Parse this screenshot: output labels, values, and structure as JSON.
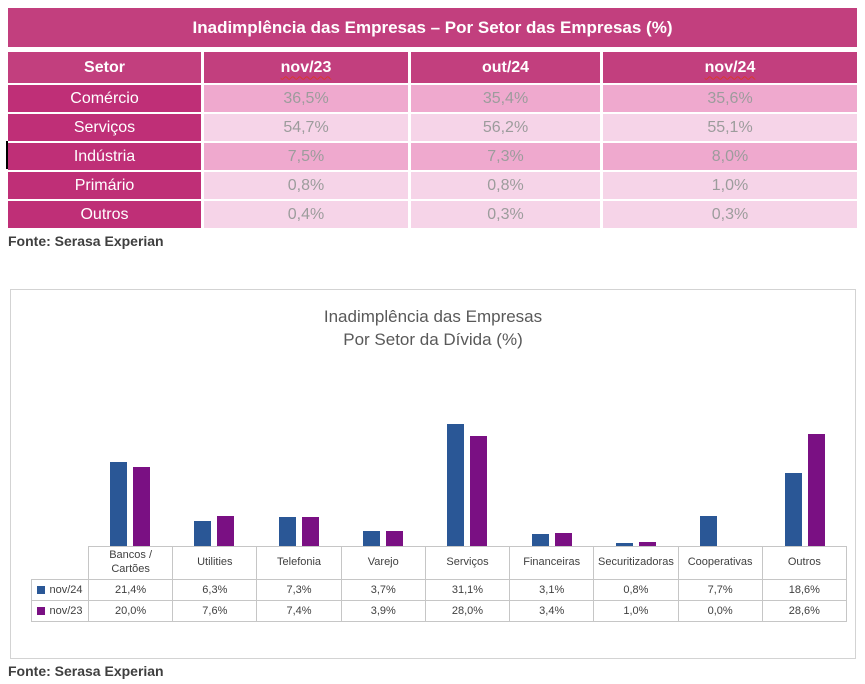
{
  "sources": {
    "top": "Fonte: Serasa Experian",
    "bottom": "Fonte: Serasa Experian"
  },
  "colors": {
    "magenta_header": "#C23F7E",
    "magenta_row_label": "#BF2F77",
    "pink_medium": "#EFA9CE",
    "pink_light": "#F6D4E8",
    "value_gray": "#9C9C9C",
    "bar_blue": "#2A5796",
    "bar_purple": "#7A1083",
    "chart_border": "#D3D3D3"
  },
  "chart_data": [
    {
      "type": "table",
      "title": "Inadimplência das Empresas – Por Setor das Empresas (%)",
      "columns": [
        {
          "label": "Setor",
          "misspelled": false
        },
        {
          "label": "nov/23",
          "misspelled": true
        },
        {
          "label": "out/24",
          "misspelled": false
        },
        {
          "label": "nov/24",
          "misspelled": true
        }
      ],
      "rows": [
        {
          "label": "Comércio",
          "values": [
            "36,5%",
            "35,4%",
            "35,6%"
          ],
          "shade": "medium"
        },
        {
          "label": "Serviços",
          "values": [
            "54,7%",
            "56,2%",
            "55,1%"
          ],
          "shade": "light"
        },
        {
          "label": "Indústria",
          "values": [
            "7,5%",
            "7,3%",
            "8,0%"
          ],
          "shade": "medium"
        },
        {
          "label": "Primário",
          "values": [
            "0,8%",
            "0,8%",
            "1,0%"
          ],
          "shade": "light"
        },
        {
          "label": "Outros",
          "values": [
            "0,4%",
            "0,3%",
            "0,3%"
          ],
          "shade": "light"
        }
      ]
    },
    {
      "type": "bar",
      "title_line1": "Inadimplência das Empresas",
      "title_line2": "Por Setor da Dívida (%)",
      "categories": [
        "Bancos / Cartões",
        "Utilities",
        "Telefonia",
        "Varejo",
        "Serviços",
        "Financeiras",
        "Securitizadoras",
        "Cooperativas",
        "Outros"
      ],
      "series": [
        {
          "name": "nov/24",
          "color": "#2A5796",
          "values": [
            21.4,
            6.3,
            7.3,
            3.7,
            31.1,
            3.1,
            0.8,
            7.7,
            18.6
          ],
          "labels": [
            "21,4%",
            "6,3%",
            "7,3%",
            "3,7%",
            "31,1%",
            "3,1%",
            "0,8%",
            "7,7%",
            "18,6%"
          ]
        },
        {
          "name": "nov/23",
          "color": "#7A1083",
          "values": [
            20.0,
            7.6,
            7.4,
            3.9,
            28.0,
            3.4,
            1.0,
            0.0,
            28.6
          ],
          "labels": [
            "20,0%",
            "7,6%",
            "7,4%",
            "3,9%",
            "28,0%",
            "3,4%",
            "1,0%",
            "0,0%",
            "28,6%"
          ]
        }
      ],
      "ylim": [
        0,
        32
      ],
      "grid": false,
      "legend_position": "table-left"
    }
  ]
}
